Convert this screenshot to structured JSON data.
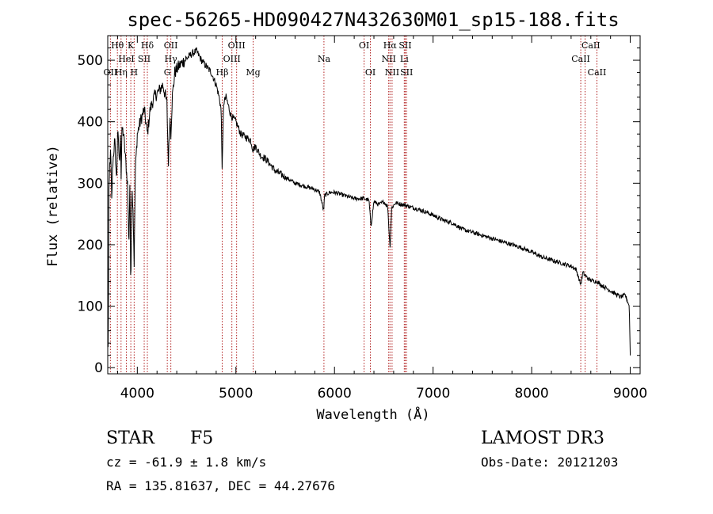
{
  "chart_data": {
    "type": "line",
    "title": "spec-56265-HD090427N432630M01_sp15-188.fits",
    "xlabel": "Wavelength (Å)",
    "ylabel": "Flux (relative)",
    "xlim": [
      3700,
      9100
    ],
    "ylim": [
      -10,
      540
    ],
    "xticks": [
      4000,
      5000,
      6000,
      7000,
      8000,
      9000
    ],
    "yticks": [
      0,
      100,
      200,
      300,
      400,
      500
    ],
    "series": [
      {
        "name": "spectrum",
        "x": [
          3700,
          3705,
          3712,
          3720,
          3730,
          3740,
          3750,
          3760,
          3770,
          3780,
          3790,
          3800,
          3810,
          3820,
          3830,
          3835,
          3845,
          3860,
          3880,
          3890,
          3900,
          3915,
          3925,
          3933,
          3945,
          3955,
          3968,
          3980,
          4000,
          4030,
          4070,
          4102,
          4130,
          4170,
          4220,
          4260,
          4300,
          4315,
          4330,
          4340,
          4355,
          4380,
          4420,
          4480,
          4550,
          4600,
          4650,
          4700,
          4750,
          4800,
          4830,
          4850,
          4861,
          4875,
          4900,
          4950,
          5000,
          5050,
          5100,
          5150,
          5172,
          5200,
          5250,
          5300,
          5400,
          5500,
          5600,
          5700,
          5800,
          5850,
          5890,
          5900,
          5950,
          6000,
          6100,
          6200,
          6300,
          6350,
          6370,
          6400,
          6450,
          6500,
          6540,
          6563,
          6580,
          6620,
          6700,
          6800,
          6900,
          7000,
          7100,
          7200,
          7300,
          7400,
          7500,
          7600,
          7700,
          7800,
          7900,
          8000,
          8100,
          8200,
          8300,
          8400,
          8450,
          8498,
          8520,
          8542,
          8570,
          8600,
          8662,
          8700,
          8750,
          8800,
          8850,
          8900,
          8950,
          8990,
          9000
        ],
        "values": [
          110,
          20,
          280,
          330,
          350,
          270,
          330,
          350,
          370,
          340,
          300,
          385,
          360,
          330,
          400,
          300,
          390,
          380,
          340,
          320,
          300,
          200,
          310,
          130,
          290,
          270,
          170,
          320,
          380,
          400,
          420,
          380,
          420,
          440,
          450,
          460,
          430,
          330,
          410,
          380,
          440,
          480,
          490,
          500,
          510,
          515,
          500,
          490,
          480,
          460,
          440,
          420,
          320,
          430,
          440,
          410,
          400,
          380,
          375,
          370,
          355,
          360,
          345,
          340,
          320,
          310,
          300,
          295,
          290,
          285,
          255,
          280,
          285,
          285,
          280,
          275,
          275,
          272,
          230,
          270,
          265,
          270,
          262,
          195,
          260,
          268,
          265,
          260,
          255,
          248,
          240,
          235,
          225,
          220,
          215,
          210,
          205,
          200,
          195,
          188,
          180,
          175,
          170,
          165,
          160,
          135,
          155,
          150,
          145,
          142,
          140,
          135,
          130,
          125,
          120,
          115,
          118,
          100,
          20
        ]
      }
    ],
    "line_ids_top": [
      {
        "label": "Hθ",
        "x": 3798
      },
      {
        "label": "K",
        "x": 3934
      },
      {
        "label": "Hδ",
        "x": 4102
      },
      {
        "label": "OII",
        "x": 4340
      },
      {
        "label": "OIII",
        "x": 5007
      },
      {
        "label": "OI",
        "x": 6300
      },
      {
        "label": "Hα",
        "x": 6563
      },
      {
        "label": "SII",
        "x": 6717
      },
      {
        "label": "CaII",
        "x": 8600
      }
    ],
    "line_ids_mid": [
      {
        "label": "HeI",
        "x": 3889
      },
      {
        "label": "SII",
        "x": 4070
      },
      {
        "label": "Hγ",
        "x": 4340
      },
      {
        "label": "OIII",
        "x": 4959
      },
      {
        "label": "Na",
        "x": 5893
      },
      {
        "label": "NII",
        "x": 6550
      },
      {
        "label": "Li",
        "x": 6708
      },
      {
        "label": "CaII",
        "x": 8498
      }
    ],
    "line_ids_low": [
      {
        "label": "OII",
        "x": 3727
      },
      {
        "label": "Hη",
        "x": 3835
      },
      {
        "label": "H",
        "x": 3968
      },
      {
        "label": "G",
        "x": 4304
      },
      {
        "label": "Hβ",
        "x": 4861
      },
      {
        "label": "Mg",
        "x": 5175
      },
      {
        "label": "OI",
        "x": 6364
      },
      {
        "label": "NII",
        "x": 6584
      },
      {
        "label": "SII",
        "x": 6731
      },
      {
        "label": "CaII",
        "x": 8662
      }
    ],
    "line_markers": [
      3727,
      3798,
      3835,
      3889,
      3934,
      3968,
      4070,
      4102,
      4304,
      4340,
      4861,
      4959,
      5007,
      5175,
      5893,
      6300,
      6364,
      6550,
      6563,
      6584,
      6708,
      6717,
      6731,
      8498,
      8542,
      8662
    ],
    "marker_color": "#b22222"
  },
  "info": {
    "class": "STAR",
    "subclass": "F5",
    "survey": "LAMOST DR3",
    "cz": "cz = -61.9 ± 1.8 km/s",
    "obs_date": "Obs-Date: 20121203",
    "coords": "RA = 135.81637, DEC =  44.27676"
  }
}
